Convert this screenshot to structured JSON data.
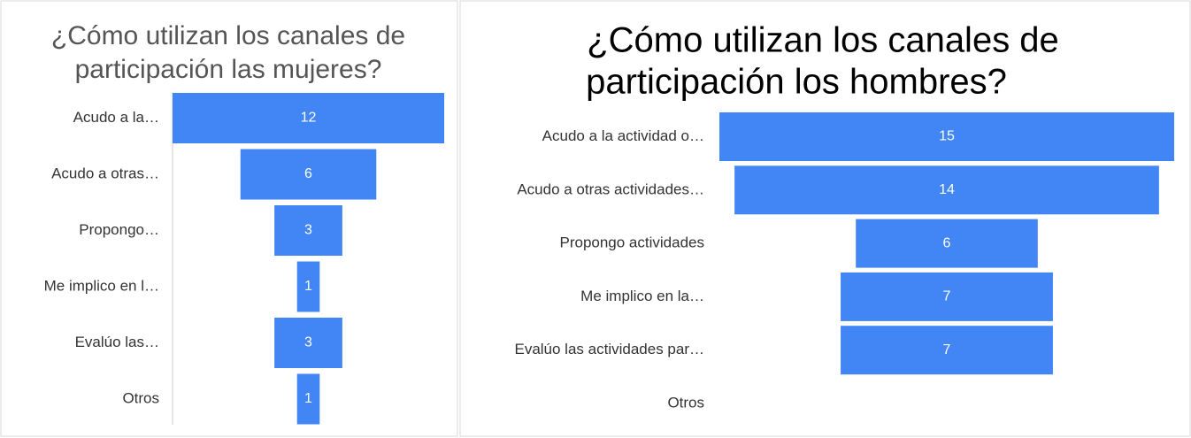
{
  "chart_data": [
    {
      "type": "funnel",
      "title": [
        "¿Cómo utilizan los canales de",
        "participación las mujeres?"
      ],
      "categories": [
        "Acudo a la…",
        "Acudo a otras…",
        "Propongo…",
        "Me implico en l…",
        "Evalúo las…",
        "Otros"
      ],
      "values": [
        12,
        6,
        3,
        1,
        3,
        1
      ],
      "color": "#4285f4"
    },
    {
      "type": "funnel",
      "title": [
        "¿Cómo utilizan los canales de",
        "participación los hombres?"
      ],
      "categories": [
        "Acudo a la actividad o…",
        "Acudo a otras actividades…",
        "Propongo actividades",
        "Me implico en la…",
        "Evalúo las actividades par…",
        "Otros"
      ],
      "values": [
        15,
        14,
        6,
        7,
        7,
        null
      ],
      "color": "#4285f4"
    }
  ]
}
